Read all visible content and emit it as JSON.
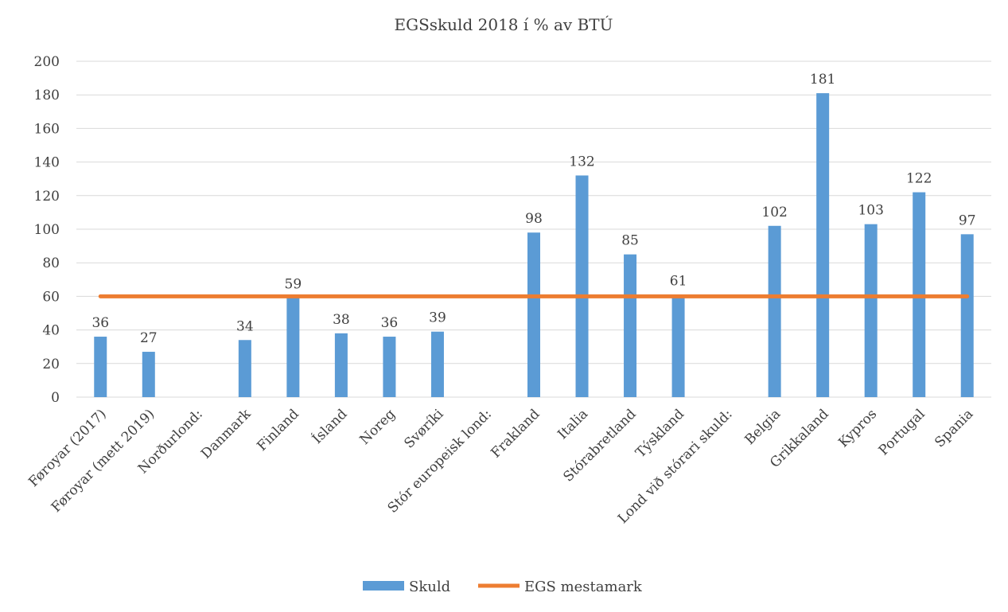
{
  "chart_data": {
    "type": "bar",
    "title": "EGSskuld 2018 í % av BTÚ",
    "xlabel": "",
    "ylabel": "",
    "ylim": [
      0,
      200
    ],
    "yticks": [
      0,
      20,
      40,
      60,
      80,
      100,
      120,
      140,
      160,
      180,
      200
    ],
    "grid": true,
    "legend_position": "bottom",
    "categories": [
      "Føroyar (2017)",
      "Føroyar (mett 2019)",
      "Norðurlond:",
      "Danmark",
      "Finland",
      "Ísland",
      "Noreg",
      "Svøríki",
      "Stór europeisk lond:",
      "Frakland",
      "Italia",
      "Stórabretland",
      "Týskland",
      "Lond við stórari skuld:",
      "Belgia",
      "Grikkaland",
      "Kypros",
      "Portugal",
      "Spania"
    ],
    "series": [
      {
        "name": "Skuld",
        "type": "bar",
        "color": "#5b9bd5",
        "values": [
          36,
          27,
          null,
          34,
          59,
          38,
          36,
          39,
          null,
          98,
          132,
          85,
          61,
          null,
          102,
          181,
          103,
          122,
          97
        ]
      },
      {
        "name": "EGS mestamark",
        "type": "line",
        "color": "#ed7d31",
        "values": [
          60,
          60,
          60,
          60,
          60,
          60,
          60,
          60,
          60,
          60,
          60,
          60,
          60,
          60,
          60,
          60,
          60,
          60,
          60
        ]
      }
    ]
  }
}
